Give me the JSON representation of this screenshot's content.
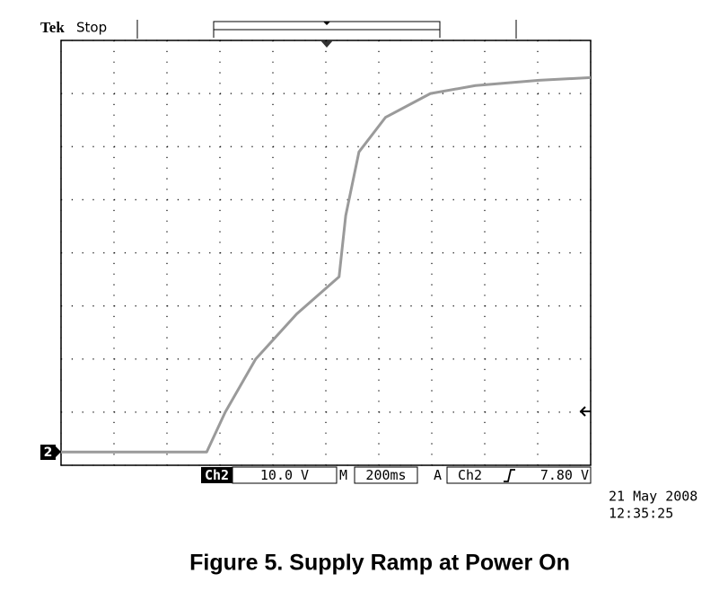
{
  "chart_data": {
    "type": "line",
    "title": "Figure 5. Supply Ramp at Power On",
    "scope": {
      "brand": "Tek",
      "state": "Stop",
      "channel_marker": "2",
      "channel": "Ch2",
      "volts_per_div": "10.0 V",
      "time_label": "M",
      "time_per_div": "200ms",
      "trigger_label": "A",
      "trigger_source": "Ch2",
      "trigger_level": "7.80 V",
      "date": "21 May 2008",
      "time": "12:35:25"
    },
    "x": [
      -1000,
      -450,
      -380,
      -265,
      -110,
      50,
      75,
      125,
      225,
      395,
      565,
      805,
      1000
    ],
    "values": [
      0,
      0,
      7.5,
      17.5,
      26,
      33,
      44.5,
      56.5,
      63,
      67.5,
      69,
      70,
      70.5
    ],
    "color": "#9a9a9a",
    "xlim": [
      -1000,
      1000
    ],
    "xticks": [
      -1000,
      -800,
      -600,
      -400,
      -200,
      0,
      200,
      400,
      600,
      800,
      1000
    ],
    "ylim": [
      -2.5,
      77.5
    ],
    "yticks": [
      -2.5,
      7.5,
      17.5,
      27.5,
      37.5,
      47.5,
      57.5,
      67.5,
      77.5
    ],
    "grid": true
  }
}
